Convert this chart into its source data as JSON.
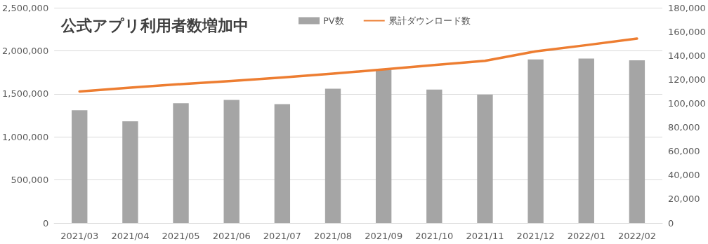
{
  "chart_data": {
    "type": "bar",
    "title": "公式アプリ利用者数増加中",
    "categories": [
      "2021/03",
      "2021/04",
      "2021/05",
      "2021/06",
      "2021/07",
      "2021/08",
      "2021/09",
      "2021/10",
      "2021/11",
      "2021/12",
      "2022/01",
      "2022/02"
    ],
    "series": [
      {
        "name": "PV数",
        "color": "#a5a5a5",
        "values": [
          1310000,
          1180000,
          1390000,
          1430000,
          1380000,
          1560000,
          1780000,
          1550000,
          1490000,
          1900000,
          1910000,
          1890000
        ]
      },
      {
        "name": "累計ダウンロード数",
        "type": "line",
        "axis": "y2",
        "color": "#ed7d31",
        "marker": "none",
        "values": [
          110000,
          113200,
          116100,
          118800,
          121600,
          124900,
          128400,
          132100,
          135600,
          143500,
          148700,
          154200
        ]
      }
    ],
    "ylim": [
      0,
      2500000
    ],
    "yticks": [
      0,
      {
        "value": 500000,
        "label": "500,000"
      },
      {
        "value": 1000000,
        "label": "1,000,000"
      },
      {
        "value": 1500000,
        "label": "1,500,000"
      },
      {
        "value": 2000000,
        "label": "2,000,000"
      },
      {
        "value": 2500000,
        "label": "2,500,000"
      }
    ],
    "y2lim": [
      0,
      180000
    ],
    "y2ticks": [
      0,
      {
        "value": 20000,
        "label": "20,000"
      },
      {
        "value": 40000,
        "label": "40,000"
      },
      {
        "value": 60000,
        "label": "60,000"
      },
      {
        "value": 80000,
        "label": "80,000"
      },
      {
        "value": 100000,
        "label": "100,000"
      },
      {
        "value": 120000,
        "label": "120,000"
      },
      {
        "value": 140000,
        "label": "140,000"
      },
      {
        "value": 160000,
        "label": "160,000"
      },
      {
        "value": 180000,
        "label": "180,000"
      }
    ],
    "grid": "y",
    "legend": "top"
  }
}
